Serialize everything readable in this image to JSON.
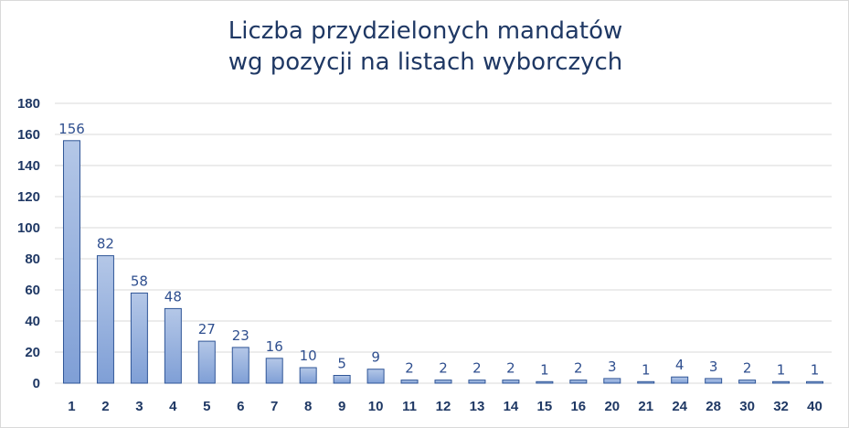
{
  "chart_data": {
    "type": "bar",
    "title_line1": "Liczba  przydzielonych  mandatów",
    "title_line2": "wg pozycji  na listach wyborczych",
    "categories": [
      "1",
      "2",
      "3",
      "4",
      "5",
      "6",
      "7",
      "8",
      "9",
      "10",
      "11",
      "12",
      "13",
      "14",
      "15",
      "16",
      "20",
      "21",
      "24",
      "28",
      "30",
      "32",
      "40"
    ],
    "values": [
      156,
      82,
      58,
      48,
      27,
      23,
      16,
      10,
      5,
      9,
      2,
      2,
      2,
      2,
      1,
      2,
      3,
      1,
      4,
      3,
      2,
      1,
      1
    ],
    "xlabel": "",
    "ylabel": "",
    "ylim": [
      0,
      180
    ],
    "yticks": [
      0,
      20,
      40,
      60,
      80,
      100,
      120,
      140,
      160,
      180
    ],
    "grid": true,
    "legend": "none",
    "bar_color_top": "#b4c7e7",
    "bar_color_bottom": "#7f9fd6",
    "bar_border": "#2f5597",
    "grid_color": "#d9d9d9",
    "text_color": "#1f3864"
  }
}
